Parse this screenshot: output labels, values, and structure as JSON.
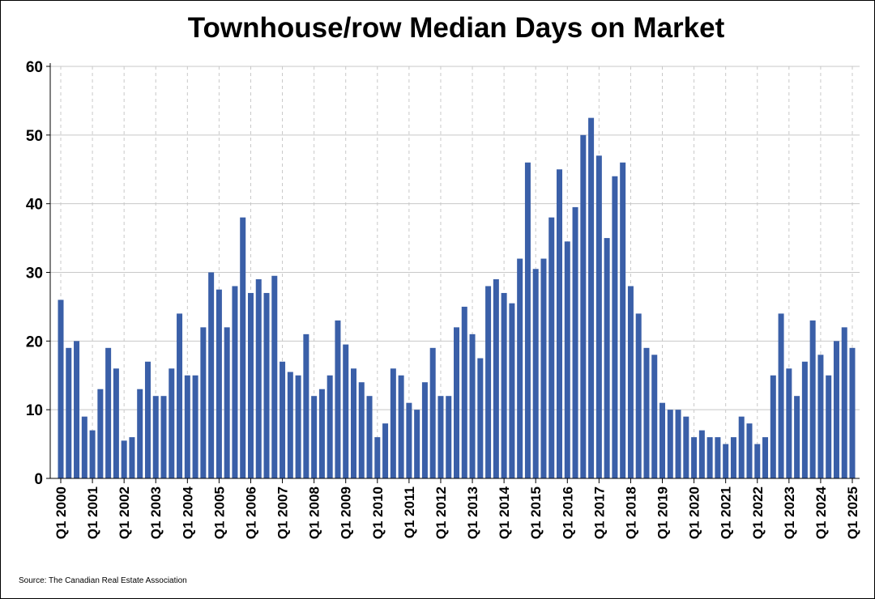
{
  "chart_data": {
    "type": "bar",
    "title": "Townhouse/row Median Days on Market",
    "xlabel": "",
    "ylabel": "",
    "ylim": [
      0,
      60
    ],
    "yticks": [
      0,
      10,
      20,
      30,
      40,
      50,
      60
    ],
    "grid": "horizontal and vertical",
    "legend": "none",
    "bar_color": "#3a5fa8",
    "categories": [
      "Q1 2000",
      "Q2 2000",
      "Q3 2000",
      "Q4 2000",
      "Q1 2001",
      "Q2 2001",
      "Q3 2001",
      "Q4 2001",
      "Q1 2002",
      "Q2 2002",
      "Q3 2002",
      "Q4 2002",
      "Q1 2003",
      "Q2 2003",
      "Q3 2003",
      "Q4 2003",
      "Q1 2004",
      "Q2 2004",
      "Q3 2004",
      "Q4 2004",
      "Q1 2005",
      "Q2 2005",
      "Q3 2005",
      "Q4 2005",
      "Q1 2006",
      "Q2 2006",
      "Q3 2006",
      "Q4 2006",
      "Q1 2007",
      "Q2 2007",
      "Q3 2007",
      "Q4 2007",
      "Q1 2008",
      "Q2 2008",
      "Q3 2008",
      "Q4 2008",
      "Q1 2009",
      "Q2 2009",
      "Q3 2009",
      "Q4 2009",
      "Q1 2010",
      "Q2 2010",
      "Q3 2010",
      "Q4 2010",
      "Q1 2011",
      "Q2 2011",
      "Q3 2011",
      "Q4 2011",
      "Q1 2012",
      "Q2 2012",
      "Q3 2012",
      "Q4 2012",
      "Q1 2013",
      "Q2 2013",
      "Q3 2013",
      "Q4 2013",
      "Q1 2014",
      "Q2 2014",
      "Q3 2014",
      "Q4 2014",
      "Q1 2015",
      "Q2 2015",
      "Q3 2015",
      "Q4 2015",
      "Q1 2016",
      "Q2 2016",
      "Q3 2016",
      "Q4 2016",
      "Q1 2017",
      "Q2 2017",
      "Q3 2017",
      "Q4 2017",
      "Q1 2018",
      "Q2 2018",
      "Q3 2018",
      "Q4 2018",
      "Q1 2019",
      "Q2 2019",
      "Q3 2019",
      "Q4 2019",
      "Q1 2020",
      "Q2 2020",
      "Q3 2020",
      "Q4 2020",
      "Q1 2021",
      "Q2 2021",
      "Q3 2021",
      "Q4 2021",
      "Q1 2022",
      "Q2 2022",
      "Q3 2022",
      "Q4 2022",
      "Q1 2023",
      "Q2 2023",
      "Q3 2023",
      "Q4 2023",
      "Q1 2024",
      "Q2 2024",
      "Q3 2024",
      "Q4 2024",
      "Q1 2025"
    ],
    "values": [
      26,
      19,
      20,
      9,
      7,
      13,
      19,
      16,
      5.5,
      6,
      13,
      17,
      12,
      12,
      16,
      24,
      15,
      15,
      22,
      30,
      27.5,
      22,
      28,
      38,
      27,
      29,
      27,
      29.5,
      17,
      15.5,
      15,
      21,
      12,
      13,
      15,
      23,
      19.5,
      16,
      14,
      12,
      6,
      8,
      16,
      15,
      11,
      10,
      14,
      19,
      12,
      12,
      22,
      25,
      21,
      17.5,
      28,
      29,
      27,
      25.5,
      32,
      46,
      30.5,
      32,
      38,
      45,
      34.5,
      39.5,
      50,
      52.5,
      47,
      35,
      44,
      46,
      28,
      24,
      19,
      18,
      11,
      10,
      10,
      9,
      6,
      7,
      6,
      6,
      5,
      6,
      9,
      8,
      5,
      6,
      15,
      24,
      16,
      12,
      17,
      23,
      18,
      15,
      20,
      22,
      19
    ],
    "xtick_labels": [
      "Q1 2000",
      "Q1 2001",
      "Q1 2002",
      "Q1 2003",
      "Q1 2004",
      "Q1 2005",
      "Q1 2006",
      "Q1 2007",
      "Q1 2008",
      "Q1 2009",
      "Q1 2010",
      "Q1 2011",
      "Q1 2012",
      "Q1 2013",
      "Q1 2014",
      "Q1 2015",
      "Q1 2016",
      "Q1 2017",
      "Q1 2018",
      "Q1 2019",
      "Q1 2020",
      "Q1 2021",
      "Q1 2022",
      "Q1 2023",
      "Q1 2024",
      "Q1 2025"
    ]
  },
  "source": "Source: The Canadian Real Estate Association"
}
